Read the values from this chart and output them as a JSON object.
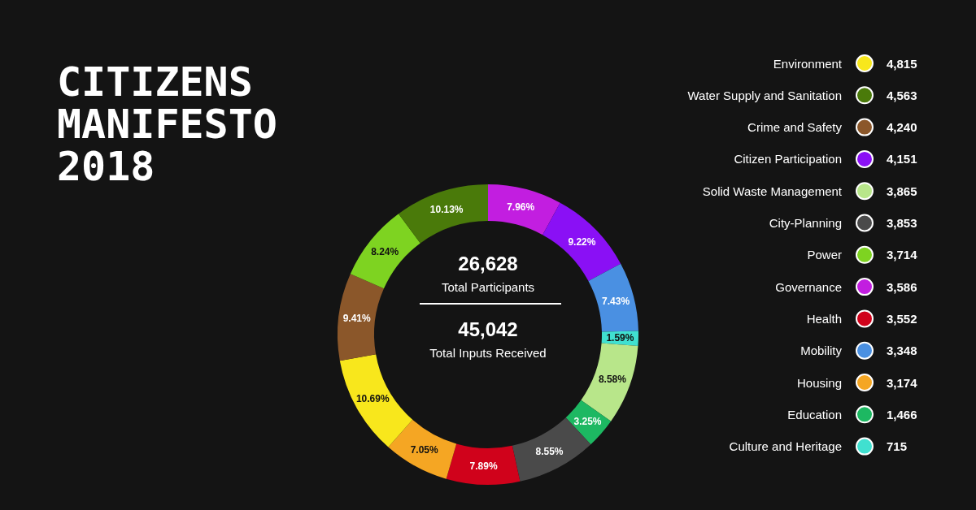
{
  "chart_data": {
    "type": "donut",
    "title": "CITIZENS MANIFESTO 2018",
    "categories": [
      "Governance",
      "Citizen Participation",
      "Mobility",
      "Culture and Heritage",
      "Solid Waste Management",
      "Education",
      "City-Planning",
      "Health",
      "Housing",
      "Environment",
      "Crime and Safety",
      "Power",
      "Water Supply and Sanitation"
    ],
    "values": [
      7.96,
      9.22,
      7.43,
      1.59,
      8.58,
      3.25,
      8.55,
      7.89,
      7.05,
      10.69,
      9.41,
      8.24,
      10.13
    ],
    "value_labels": [
      "7.96%",
      "9.22%",
      "7.43%",
      "1.59%",
      "8.58%",
      "3.25%",
      "8.55%",
      "7.89%",
      "7.05%",
      "10.69%",
      "9.41%",
      "8.24%",
      "10.13%"
    ],
    "colors": [
      "#c21ee0",
      "#8a10f5",
      "#4a90e2",
      "#40e0d0",
      "#b8e68a",
      "#1db862",
      "#4a4a4a",
      "#d0021b",
      "#f5a623",
      "#f8e71c",
      "#8b572a",
      "#7ed321",
      "#4a7a0a"
    ],
    "annotations": [
      "26,628",
      "Total Participants",
      "45,042",
      "Total Inputs Received",
      {
        "text": "3,586",
        "x": "Governance"
      },
      {
        "text": "4,151",
        "x": "Citizen Participation"
      },
      {
        "text": "3,348",
        "x": "Mobility"
      },
      {
        "text": "715",
        "x": "Culture and Heritage"
      },
      {
        "text": "3,865",
        "x": "Solid Waste Management"
      },
      {
        "text": "1,466",
        "x": "Education"
      },
      {
        "text": "3,853",
        "x": "City-Planning"
      },
      {
        "text": "3,552",
        "x": "Health"
      },
      {
        "text": "3,174",
        "x": "Housing"
      },
      {
        "text": "4,815",
        "x": "Environment"
      },
      {
        "text": "4,240",
        "x": "Crime and Safety"
      },
      {
        "text": "3,714",
        "x": "Power"
      },
      {
        "text": "4,563",
        "x": "Water Supply and Sanitation"
      }
    ],
    "legend": "right"
  }
}
